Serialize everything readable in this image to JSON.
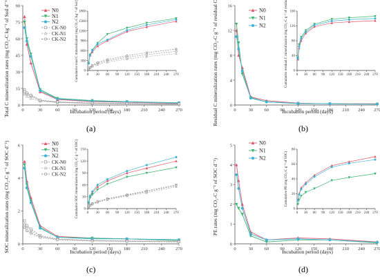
{
  "figure": {
    "panels": [
      {
        "panel_label": "(a)",
        "xlabel": "Incubation period (days)",
        "ylabel": "Total C mineralization rates (mg CO₂-C kg⁻¹ of Soil d⁻¹)",
        "legend": [
          "N0",
          "N1",
          "N2",
          "CK-N0",
          "CK-N1",
          "CK-N2"
        ]
      },
      {
        "panel_label": "(b)",
        "xlabel": "Incubation period (days)",
        "ylabel": "Residual C mineralization rates (mg CO₂-C g⁻¹ of residual C d⁻¹)",
        "legend": [
          "N0",
          "N1",
          "N2"
        ]
      },
      {
        "panel_label": "(c)",
        "xlabel": "Incubation period (days)",
        "ylabel": "SOC mineralization rates (mg CO₂-C g⁻¹ of SOC d⁻¹)",
        "legend": [
          "N0",
          "N1",
          "N2",
          "CK-N0",
          "CK-N1",
          "CK-N2"
        ]
      },
      {
        "panel_label": "(d)",
        "xlabel": "Incubation period (days)",
        "ylabel": "PE rates (mg CO₂-C g⁻¹ of SOC d⁻¹)",
        "legend": [
          "N0",
          "N1",
          "N2"
        ]
      }
    ],
    "colors": {
      "N0": "#e0566a",
      "N1": "#3cb371",
      "N2": "#3fb3d6",
      "CK-N0": "#999999",
      "CK-N1": "#b3b3b3",
      "CK-N2": "#8a8a8a"
    }
  },
  "chart_data": [
    {
      "type": "line",
      "id": "a_main",
      "xlabel": "Incubation period (days)",
      "ylabel": "Total C mineralization rates (mg CO₂-C kg⁻¹ of Soil d⁻¹)",
      "xlim": [
        0,
        270
      ],
      "ylim": [
        0,
        90
      ],
      "xticks": [
        0,
        30,
        60,
        90,
        120,
        150,
        180,
        210,
        240,
        270
      ],
      "yticks": [
        0,
        15,
        30,
        45,
        60,
        75,
        90
      ],
      "x": [
        3,
        7,
        14,
        30,
        60,
        120,
        180,
        270
      ],
      "series": [
        {
          "name": "N0",
          "values": [
            80,
            55,
            38,
            12,
            5,
            3,
            2.5,
            1.5
          ]
        },
        {
          "name": "N1",
          "values": [
            75,
            60,
            46,
            14,
            6,
            4,
            3,
            2
          ]
        },
        {
          "name": "N2",
          "values": [
            70,
            58,
            44,
            13,
            5.5,
            3.5,
            2.8,
            1.8
          ]
        },
        {
          "name": "CK-N0",
          "values": [
            12,
            10,
            8,
            4,
            2.5,
            1.5,
            1.2,
            0.8
          ]
        },
        {
          "name": "CK-N1",
          "values": [
            10,
            8,
            6,
            3.5,
            2.2,
            1.3,
            1,
            0.7
          ]
        },
        {
          "name": "CK-N2",
          "values": [
            14,
            11,
            9,
            4.5,
            2.8,
            1.8,
            1.4,
            1
          ]
        }
      ]
    },
    {
      "type": "line",
      "id": "a_inset",
      "xlabel": "",
      "ylabel": "Cumulative total C mineralization (mg CO₂-C kg⁻¹ of Soil)",
      "xlim": [
        0,
        270
      ],
      "ylim": [
        0,
        1800
      ],
      "xticks": [
        0,
        30,
        60,
        90,
        120,
        150,
        180,
        210,
        240,
        270
      ],
      "yticks": [
        0,
        300,
        600,
        900,
        1200,
        1500,
        1800
      ],
      "x": [
        3,
        7,
        14,
        30,
        60,
        120,
        180,
        270
      ],
      "series": [
        {
          "name": "N0",
          "values": [
            240,
            450,
            560,
            740,
            900,
            1180,
            1320,
            1490
          ]
        },
        {
          "name": "N1",
          "values": [
            220,
            480,
            620,
            830,
            1100,
            1290,
            1440,
            1580
          ]
        },
        {
          "name": "N2",
          "values": [
            210,
            460,
            600,
            800,
            930,
            1220,
            1380,
            1540
          ]
        },
        {
          "name": "CK-N0",
          "values": [
            40,
            90,
            140,
            210,
            290,
            400,
            480,
            580
          ]
        },
        {
          "name": "CK-N1",
          "values": [
            35,
            80,
            120,
            180,
            250,
            350,
            420,
            510
          ]
        },
        {
          "name": "CK-N2",
          "values": [
            45,
            100,
            160,
            240,
            330,
            450,
            540,
            650
          ]
        }
      ]
    },
    {
      "type": "line",
      "id": "b_main",
      "xlabel": "Incubation period (days)",
      "ylabel": "Residual C mineralization rates (mg CO₂-C g⁻¹ of residual C d⁻¹)",
      "xlim": [
        0,
        270
      ],
      "ylim": [
        0,
        16
      ],
      "xticks": [
        0,
        30,
        60,
        90,
        120,
        150,
        180,
        210,
        240,
        270
      ],
      "yticks": [
        0,
        4,
        8,
        12,
        16
      ],
      "x": [
        3,
        7,
        14,
        30,
        60,
        120,
        180,
        270
      ],
      "series": [
        {
          "name": "N0",
          "values": [
            12,
            8,
            6,
            1.3,
            0.7,
            0.3,
            0.2,
            0.2
          ]
        },
        {
          "name": "N1",
          "values": [
            13,
            10,
            5,
            1.2,
            0.5,
            0.25,
            0.2,
            0.15
          ]
        },
        {
          "name": "N2",
          "values": [
            11,
            9,
            5.5,
            1.1,
            0.5,
            0.25,
            0.2,
            0.15
          ]
        }
      ]
    },
    {
      "type": "line",
      "id": "b_inset",
      "xlabel": "",
      "ylabel": "Cumulative residual C mineralization (mg CO₂-C g⁻¹ of residual C)",
      "xlim": [
        0,
        270
      ],
      "ylim": [
        0,
        160
      ],
      "xticks": [
        0,
        30,
        60,
        90,
        120,
        150,
        180,
        210,
        240,
        270
      ],
      "yticks": [
        0,
        40,
        80,
        120,
        160
      ],
      "x": [
        3,
        7,
        14,
        30,
        60,
        120,
        180,
        270
      ],
      "series": [
        {
          "name": "N0",
          "values": [
            30,
            60,
            80,
            100,
            118,
            128,
            131,
            134
          ]
        },
        {
          "name": "N1",
          "values": [
            35,
            70,
            90,
            108,
            125,
            138,
            142,
            146
          ]
        },
        {
          "name": "N2",
          "values": [
            32,
            65,
            86,
            104,
            122,
            133,
            137,
            140
          ]
        }
      ]
    },
    {
      "type": "line",
      "id": "c_main",
      "xlabel": "Incubation period (days)",
      "ylabel": "SOC mineralization rates (mg CO₂-C g⁻¹ of SOC d⁻¹)",
      "xlim": [
        0,
        270
      ],
      "ylim": [
        0,
        6
      ],
      "xticks": [
        0,
        30,
        60,
        90,
        120,
        150,
        180,
        210,
        240,
        270
      ],
      "yticks": [
        0,
        2,
        4,
        6
      ],
      "x": [
        3,
        7,
        14,
        30,
        60,
        120,
        180,
        270
      ],
      "series": [
        {
          "name": "N0",
          "values": [
            5,
            3.8,
            2.8,
            1.1,
            0.45,
            0.35,
            0.3,
            0.2
          ]
        },
        {
          "name": "N1",
          "values": [
            4.8,
            3.6,
            2.6,
            1,
            0.4,
            0.35,
            0.3,
            0.2
          ]
        },
        {
          "name": "N2",
          "values": [
            4.6,
            3.4,
            2.5,
            0.95,
            0.4,
            0.3,
            0.3,
            0.25
          ]
        },
        {
          "name": "CK-N0",
          "values": [
            1.4,
            1.1,
            0.9,
            0.5,
            0.3,
            0.2,
            0.18,
            0.15
          ]
        },
        {
          "name": "CK-N1",
          "values": [
            1.2,
            1,
            0.8,
            0.45,
            0.28,
            0.2,
            0.17,
            0.14
          ]
        },
        {
          "name": "CK-N2",
          "values": [
            1,
            0.8,
            0.65,
            0.4,
            0.25,
            0.18,
            0.15,
            0.12
          ]
        }
      ]
    },
    {
      "type": "line",
      "id": "c_inset",
      "xlabel": "",
      "ylabel": "Cumulative SOC mineralization (mg CO₂-C g⁻¹ of SOC)",
      "xlim": [
        0,
        270
      ],
      "ylim": [
        0,
        150
      ],
      "xticks": [
        0,
        30,
        60,
        90,
        120,
        150,
        180,
        210,
        240,
        270
      ],
      "yticks": [
        0,
        30,
        60,
        90,
        120,
        150
      ],
      "x": [
        3,
        7,
        14,
        30,
        60,
        120,
        180,
        270
      ],
      "series": [
        {
          "name": "N0",
          "values": [
            15,
            30,
            40,
            55,
            70,
            90,
            102,
            120
          ]
        },
        {
          "name": "N1",
          "values": [
            13,
            27,
            35,
            48,
            62,
            80,
            90,
            104
          ]
        },
        {
          "name": "N2",
          "values": [
            16,
            32,
            43,
            60,
            74,
            95,
            110,
            130
          ]
        },
        {
          "name": "CK-N0",
          "values": [
            5,
            9,
            13,
            18,
            25,
            35,
            45,
            60
          ]
        },
        {
          "name": "CK-N1",
          "values": [
            4,
            8,
            11,
            16,
            22,
            32,
            40,
            55
          ]
        },
        {
          "name": "CK-N2",
          "values": [
            4.5,
            8.5,
            12,
            17,
            24,
            34,
            43,
            58
          ]
        }
      ]
    },
    {
      "type": "line",
      "id": "d_main",
      "xlabel": "Incubation period (days)",
      "ylabel": "PE rates (mg CO₂-C g⁻¹ of SOC d⁻¹)",
      "xlim": [
        0,
        270
      ],
      "ylim": [
        0,
        5
      ],
      "xticks": [
        0,
        30,
        60,
        90,
        120,
        150,
        180,
        210,
        240,
        270
      ],
      "yticks": [
        0,
        1,
        2,
        3,
        4,
        5
      ],
      "x": [
        3,
        7,
        14,
        30,
        60,
        120,
        180,
        270
      ],
      "series": [
        {
          "name": "N0",
          "values": [
            4.0,
            3.2,
            2.0,
            0.6,
            0.2,
            0.3,
            0.25,
            0.1
          ]
        },
        {
          "name": "N1",
          "values": [
            2.0,
            1.8,
            1.5,
            0.4,
            0.1,
            0.2,
            0.2,
            0.05
          ]
        },
        {
          "name": "N2",
          "values": [
            3.5,
            2.8,
            1.8,
            0.5,
            0.2,
            0.25,
            0.2,
            0.08
          ]
        }
      ]
    },
    {
      "type": "line",
      "id": "d_inset",
      "xlabel": "",
      "ylabel": "Cumulative PE (mg CO₂-C g⁻¹ of SOC)",
      "xlim": [
        0,
        270
      ],
      "ylim": [
        0,
        80
      ],
      "xticks": [
        0,
        30,
        60,
        90,
        120,
        150,
        180,
        210,
        240,
        270
      ],
      "yticks": [
        0,
        20,
        40,
        60,
        80
      ],
      "x": [
        3,
        7,
        14,
        30,
        60,
        120,
        180,
        270
      ],
      "series": [
        {
          "name": "N0",
          "values": [
            12,
            20,
            28,
            35,
            45,
            58,
            63,
            70
          ]
        },
        {
          "name": "N1",
          "values": [
            6,
            12,
            17,
            22,
            27,
            38,
            42,
            47
          ]
        },
        {
          "name": "N2",
          "values": [
            11,
            19,
            26,
            33,
            43,
            56,
            61,
            66
          ]
        }
      ]
    }
  ]
}
